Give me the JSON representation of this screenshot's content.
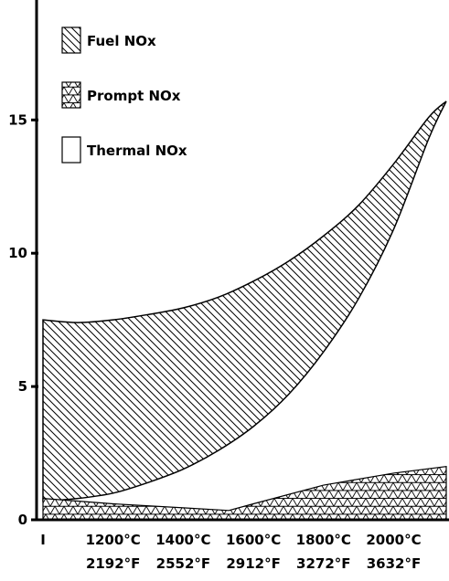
{
  "chart_data": {
    "type": "area",
    "y_ticks": [
      0,
      5,
      10,
      15
    ],
    "ylim": [
      0,
      19.5
    ],
    "x_range": [
      1000,
      2150
    ],
    "x_ticks": [
      {
        "x": 1000,
        "label_c": "I",
        "label_f": ""
      },
      {
        "x": 1200,
        "label_c": "1200°C",
        "label_f": "2192°F"
      },
      {
        "x": 1400,
        "label_c": "1400°C",
        "label_f": "2552°F"
      },
      {
        "x": 1600,
        "label_c": "1600°C",
        "label_f": "2912°F"
      },
      {
        "x": 1800,
        "label_c": "1800°C",
        "label_f": "3272°F"
      },
      {
        "x": 2000,
        "label_c": "2000°C",
        "label_f": "3632°F"
      }
    ],
    "series": [
      {
        "name": "Fuel NOx",
        "pattern": "diagonal-hatch",
        "upper": [
          [
            1000,
            7.5
          ],
          [
            1100,
            7.4
          ],
          [
            1200,
            7.5
          ],
          [
            1300,
            7.7
          ],
          [
            1400,
            7.95
          ],
          [
            1500,
            8.35
          ],
          [
            1600,
            8.95
          ],
          [
            1700,
            9.7
          ],
          [
            1800,
            10.65
          ],
          [
            1900,
            11.8
          ],
          [
            2000,
            13.35
          ],
          [
            2100,
            15.1
          ],
          [
            2150,
            15.7
          ]
        ],
        "lower": [
          [
            1000,
            0.7
          ],
          [
            1100,
            0.8
          ],
          [
            1200,
            1.0
          ],
          [
            1300,
            1.4
          ],
          [
            1400,
            1.9
          ],
          [
            1500,
            2.6
          ],
          [
            1600,
            3.5
          ],
          [
            1700,
            4.7
          ],
          [
            1800,
            6.3
          ],
          [
            1900,
            8.3
          ],
          [
            2000,
            10.9
          ],
          [
            2100,
            14.3
          ],
          [
            2150,
            15.7
          ]
        ]
      },
      {
        "name": "Prompt NOx",
        "pattern": "triangle-lattice",
        "upper": [
          [
            1000,
            0.8
          ],
          [
            1200,
            0.6
          ],
          [
            1400,
            0.45
          ],
          [
            1530,
            0.35
          ],
          [
            1600,
            0.6
          ],
          [
            1800,
            1.3
          ],
          [
            2000,
            1.75
          ],
          [
            2150,
            2.0
          ]
        ],
        "lower": [
          [
            1000,
            0.0
          ],
          [
            2150,
            0.0
          ]
        ]
      },
      {
        "name": "Thermal NOx",
        "pattern": "none"
      }
    ],
    "legend": {
      "placement": "top-left"
    }
  }
}
